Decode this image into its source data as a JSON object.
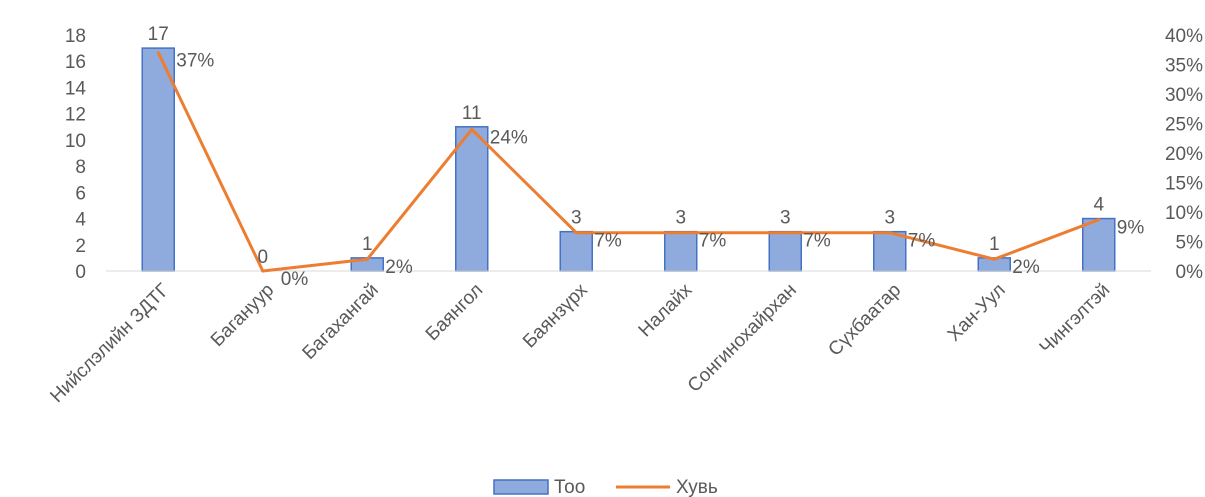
{
  "chart_data": {
    "type": "bar",
    "categories": [
      "Нийслэлийн ЗДТГ",
      "Багануур",
      "Багахангай",
      "Баянгол",
      "Баянзүрх",
      "Налайх",
      "Сонгинохайрхан",
      "Сүхбаатар",
      "Хан-Уул",
      "Чингэлтэй"
    ],
    "series": [
      {
        "name": "Тоо",
        "type": "bar",
        "axis": "left",
        "color": "#8faadc",
        "border": "#4472c4",
        "values": [
          17,
          0,
          1,
          11,
          3,
          3,
          3,
          3,
          1,
          4
        ],
        "labels": [
          "17",
          "0",
          "1",
          "11",
          "3",
          "3",
          "3",
          "3",
          "1",
          "4"
        ]
      },
      {
        "name": "Хувь",
        "type": "line",
        "axis": "right",
        "color": "#ed7d31",
        "values": [
          0.37,
          0.0,
          0.02,
          0.24,
          0.065,
          0.065,
          0.065,
          0.065,
          0.02,
          0.087
        ],
        "labels": [
          "37%",
          "0%",
          "2%",
          "24%",
          "7%",
          "7%",
          "7%",
          "7%",
          "2%",
          "9%"
        ]
      }
    ],
    "y_left": {
      "min": 0,
      "max": 18,
      "ticks": [
        "0",
        "2",
        "4",
        "6",
        "8",
        "10",
        "12",
        "14",
        "16",
        "18"
      ]
    },
    "y_right": {
      "min": 0,
      "max": 0.4,
      "ticks": [
        "0%",
        "5%",
        "10%",
        "15%",
        "20%",
        "25%",
        "30%",
        "35%",
        "40%"
      ]
    },
    "grid": false,
    "legend": "bottom"
  }
}
